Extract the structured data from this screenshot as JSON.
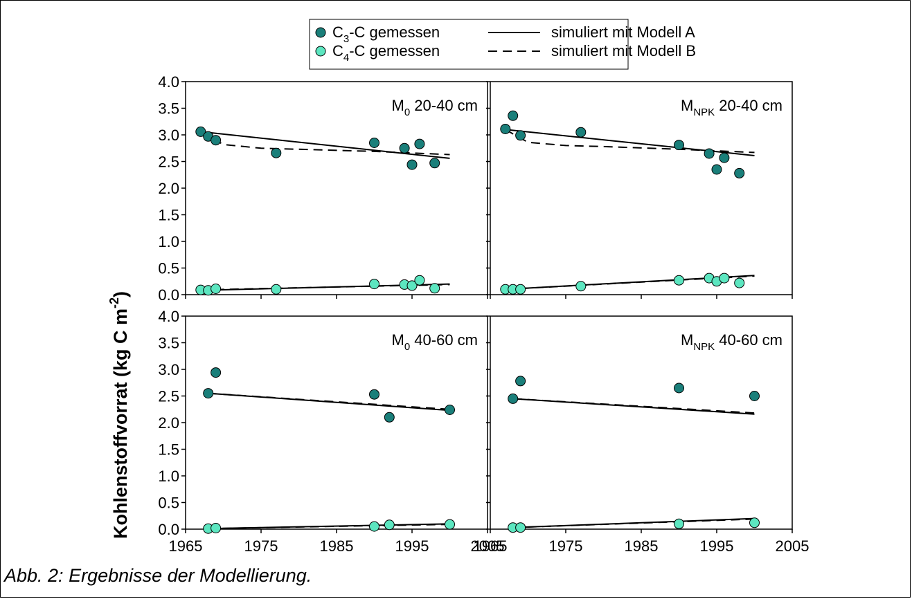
{
  "caption": "Abb. 2: Ergebnisse der Modellierung.",
  "y_axis_label": "Kohlenstoffvorrat (kg C m-2)",
  "legend": {
    "c3": {
      "base": "C",
      "sub": "3",
      "rest": "-C gemessen"
    },
    "c4": {
      "base": "C",
      "sub": "4",
      "rest": "-C gemessen"
    },
    "model_a": "simuliert mit Modell A",
    "model_b": "simuliert mit Modell B"
  },
  "colors": {
    "c3_fill": "#1a7f7a",
    "c4_fill": "#5ce6c0",
    "marker_stroke": "#000000",
    "line": "#000000"
  },
  "chart_data": [
    {
      "type": "scatter",
      "panel": "top-left",
      "label": {
        "base": "M",
        "sub": "0",
        "rest": " 20-40 cm"
      },
      "xlim": [
        1965,
        2005
      ],
      "ylim": [
        0,
        4
      ],
      "x_ticks": [
        1965,
        1975,
        1985,
        1995,
        2005
      ],
      "y_ticks": [
        "0.0",
        "0.5",
        "1.0",
        "1.5",
        "2.0",
        "2.5",
        "3.0",
        "3.5",
        "4.0"
      ],
      "show_x_tick_labels": false,
      "show_y_tick_labels": true,
      "series": [
        {
          "name": "C3-C gemessen",
          "points": [
            [
              1967,
              3.06
            ],
            [
              1968,
              2.97
            ],
            [
              1969,
              2.9
            ],
            [
              1977,
              2.66
            ],
            [
              1990,
              2.85
            ],
            [
              1994,
              2.75
            ],
            [
              1995,
              2.44
            ],
            [
              1996,
              2.83
            ],
            [
              1998,
              2.47
            ]
          ]
        },
        {
          "name": "C4-C gemessen",
          "points": [
            [
              1967,
              0.09
            ],
            [
              1968,
              0.08
            ],
            [
              1969,
              0.11
            ],
            [
              1977,
              0.1
            ],
            [
              1990,
              0.2
            ],
            [
              1994,
              0.19
            ],
            [
              1995,
              0.17
            ],
            [
              1996,
              0.27
            ],
            [
              1998,
              0.12
            ]
          ]
        },
        {
          "name": "simuliert mit Modell A",
          "points": [
            [
              1967,
              3.06
            ],
            [
              2000,
              2.56
            ]
          ]
        },
        {
          "name": "simuliert mit Modell B",
          "points": [
            [
              1967,
              3.06
            ],
            [
              1970,
              2.82
            ],
            [
              1975,
              2.75
            ],
            [
              1980,
              2.73
            ],
            [
              1990,
              2.69
            ],
            [
              2000,
              2.63
            ]
          ]
        },
        {
          "name": "simuliert mit Modell A (C4)",
          "points": [
            [
              1967,
              0.08
            ],
            [
              2000,
              0.2
            ]
          ]
        },
        {
          "name": "simuliert mit Modell B (C4)",
          "points": [
            [
              1967,
              0.09
            ],
            [
              2000,
              0.19
            ]
          ]
        }
      ]
    },
    {
      "type": "scatter",
      "panel": "top-right",
      "label": {
        "base": "M",
        "sub": "NPK",
        "rest": " 20-40 cm"
      },
      "xlim": [
        1965,
        2005
      ],
      "ylim": [
        0,
        4
      ],
      "x_ticks": [
        1965,
        1975,
        1985,
        1995,
        2005
      ],
      "y_ticks": [
        "0.0",
        "0.5",
        "1.0",
        "1.5",
        "2.0",
        "2.5",
        "3.0",
        "3.5",
        "4.0"
      ],
      "show_x_tick_labels": false,
      "show_y_tick_labels": false,
      "series": [
        {
          "name": "C3-C gemessen",
          "points": [
            [
              1967,
              3.11
            ],
            [
              1968,
              3.36
            ],
            [
              1969,
              2.99
            ],
            [
              1977,
              3.05
            ],
            [
              1990,
              2.81
            ],
            [
              1994,
              2.65
            ],
            [
              1995,
              2.35
            ],
            [
              1996,
              2.57
            ],
            [
              1998,
              2.28
            ]
          ]
        },
        {
          "name": "C4-C gemessen",
          "points": [
            [
              1967,
              0.1
            ],
            [
              1968,
              0.1
            ],
            [
              1969,
              0.1
            ],
            [
              1977,
              0.16
            ],
            [
              1990,
              0.27
            ],
            [
              1994,
              0.31
            ],
            [
              1995,
              0.25
            ],
            [
              1996,
              0.31
            ],
            [
              1998,
              0.22
            ]
          ]
        },
        {
          "name": "simuliert mit Modell A",
          "points": [
            [
              1967,
              3.1
            ],
            [
              2000,
              2.61
            ]
          ]
        },
        {
          "name": "simuliert mit Modell B",
          "points": [
            [
              1967,
              3.1
            ],
            [
              1970,
              2.86
            ],
            [
              1975,
              2.8
            ],
            [
              1980,
              2.78
            ],
            [
              1990,
              2.73
            ],
            [
              2000,
              2.67
            ]
          ]
        },
        {
          "name": "simuliert mit Modell A (C4)",
          "points": [
            [
              1967,
              0.1
            ],
            [
              2000,
              0.36
            ]
          ]
        },
        {
          "name": "simuliert mit Modell B (C4)",
          "points": [
            [
              1967,
              0.1
            ],
            [
              2000,
              0.35
            ]
          ]
        }
      ]
    },
    {
      "type": "scatter",
      "panel": "bottom-left",
      "label": {
        "base": "M",
        "sub": "0",
        "rest": " 40-60 cm"
      },
      "xlim": [
        1965,
        2005
      ],
      "ylim": [
        0,
        4
      ],
      "x_ticks": [
        1965,
        1975,
        1985,
        1995,
        2005
      ],
      "y_ticks": [
        "0.0",
        "0.5",
        "1.0",
        "1.5",
        "2.0",
        "2.5",
        "3.0",
        "3.5",
        "4.0"
      ],
      "show_x_tick_labels": true,
      "show_y_tick_labels": true,
      "series": [
        {
          "name": "C3-C gemessen",
          "points": [
            [
              1968,
              2.55
            ],
            [
              1969,
              2.94
            ],
            [
              1990,
              2.53
            ],
            [
              1992,
              2.1
            ],
            [
              2000,
              2.24
            ]
          ]
        },
        {
          "name": "C4-C gemessen",
          "points": [
            [
              1968,
              0.01
            ],
            [
              1969,
              0.02
            ],
            [
              1990,
              0.05
            ],
            [
              1992,
              0.08
            ],
            [
              2000,
              0.09
            ]
          ]
        },
        {
          "name": "simuliert mit Modell A",
          "points": [
            [
              1968,
              2.55
            ],
            [
              2000,
              2.23
            ]
          ]
        },
        {
          "name": "simuliert mit Modell B",
          "points": [
            [
              1968,
              2.55
            ],
            [
              2000,
              2.25
            ]
          ]
        },
        {
          "name": "simuliert mit Modell A (C4)",
          "points": [
            [
              1968,
              0.01
            ],
            [
              2000,
              0.1
            ]
          ]
        },
        {
          "name": "simuliert mit Modell B (C4)",
          "points": [
            [
              1968,
              0.01
            ],
            [
              2000,
              0.09
            ]
          ]
        }
      ]
    },
    {
      "type": "scatter",
      "panel": "bottom-right",
      "label": {
        "base": "M",
        "sub": "NPK",
        "rest": " 40-60 cm"
      },
      "xlim": [
        1965,
        2005
      ],
      "ylim": [
        0,
        4
      ],
      "x_ticks": [
        1965,
        1975,
        1985,
        1995,
        2005
      ],
      "y_ticks": [
        "0.0",
        "0.5",
        "1.0",
        "1.5",
        "2.0",
        "2.5",
        "3.0",
        "3.5",
        "4.0"
      ],
      "show_x_tick_labels": true,
      "show_y_tick_labels": false,
      "series": [
        {
          "name": "C3-C gemessen",
          "points": [
            [
              1968,
              2.45
            ],
            [
              1969,
              2.78
            ],
            [
              1990,
              2.65
            ],
            [
              2000,
              2.5
            ]
          ]
        },
        {
          "name": "C4-C gemessen",
          "points": [
            [
              1968,
              0.03
            ],
            [
              1969,
              0.03
            ],
            [
              1990,
              0.1
            ],
            [
              2000,
              0.12
            ]
          ]
        },
        {
          "name": "simuliert mit Modell A",
          "points": [
            [
              1968,
              2.45
            ],
            [
              2000,
              2.16
            ]
          ]
        },
        {
          "name": "simuliert mit Modell B",
          "points": [
            [
              1968,
              2.45
            ],
            [
              2000,
              2.18
            ]
          ]
        },
        {
          "name": "simuliert mit Modell A (C4)",
          "points": [
            [
              1968,
              0.03
            ],
            [
              2000,
              0.2
            ]
          ]
        },
        {
          "name": "simuliert mit Modell B (C4)",
          "points": [
            [
              1968,
              0.03
            ],
            [
              2000,
              0.19
            ]
          ]
        }
      ]
    }
  ]
}
